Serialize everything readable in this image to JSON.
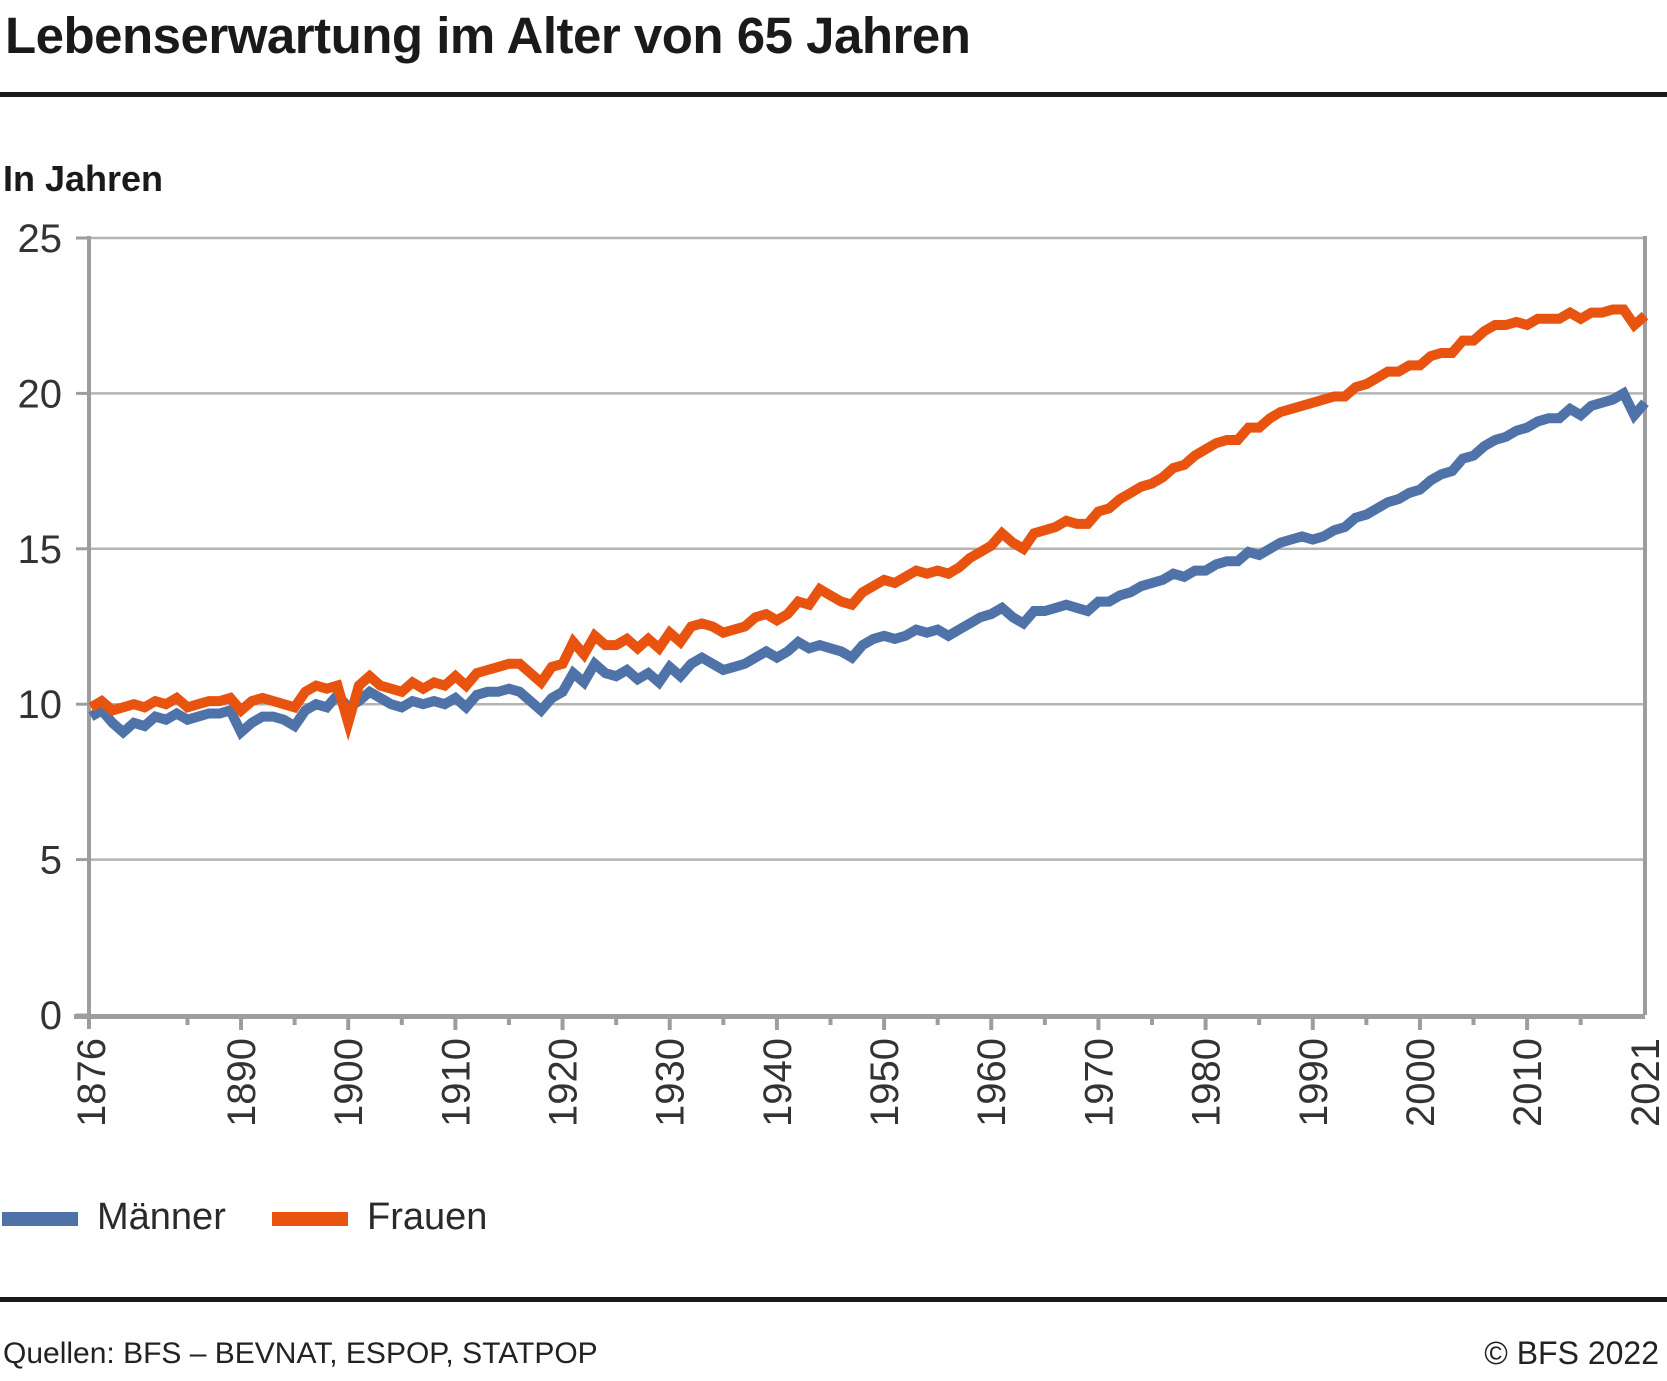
{
  "header": {
    "title": "Lebenserwartung im Alter von 65 Jahren"
  },
  "subtitle": "In Jahren",
  "legend": {
    "items": [
      {
        "label": "Männer",
        "color": "#4f72a9"
      },
      {
        "label": "Frauen",
        "color": "#e8530f"
      }
    ]
  },
  "footer": {
    "sources": "Quellen: BFS – BEVNAT, ESPOP, STATPOP",
    "copyright": "© BFS 2022"
  },
  "colors": {
    "maenner": "#4f72a9",
    "frauen": "#e8530f",
    "grid": "#b4b4b4",
    "axis": "#9d9d9d",
    "text": "#333333",
    "rule": "#1a1a1a"
  },
  "chart_data": {
    "type": "line",
    "title": "Lebenserwartung im Alter von 65 Jahren",
    "ylabel": "In Jahren",
    "ylim": [
      0,
      25
    ],
    "yticks": [
      0,
      5,
      10,
      15,
      20,
      25
    ],
    "x_range": [
      1876,
      2021
    ],
    "xtick_labels": [
      1876,
      1890,
      1900,
      1910,
      1920,
      1930,
      1940,
      1950,
      1960,
      1970,
      1980,
      1990,
      2000,
      2010,
      2021
    ],
    "xticks_minor": [
      1885,
      1895,
      1905,
      1915,
      1925,
      1935,
      1945,
      1955,
      1965,
      1975,
      1985,
      1995,
      2005,
      2015
    ],
    "grid": "horizontal",
    "legend_position": "bottom",
    "years": [
      1876,
      1877,
      1878,
      1879,
      1880,
      1881,
      1882,
      1883,
      1884,
      1885,
      1886,
      1887,
      1888,
      1889,
      1890,
      1891,
      1892,
      1893,
      1894,
      1895,
      1896,
      1897,
      1898,
      1899,
      1900,
      1901,
      1902,
      1903,
      1904,
      1905,
      1906,
      1907,
      1908,
      1909,
      1910,
      1911,
      1912,
      1913,
      1914,
      1915,
      1916,
      1917,
      1918,
      1919,
      1920,
      1921,
      1922,
      1923,
      1924,
      1925,
      1926,
      1927,
      1928,
      1929,
      1930,
      1931,
      1932,
      1933,
      1934,
      1935,
      1936,
      1937,
      1938,
      1939,
      1940,
      1941,
      1942,
      1943,
      1944,
      1945,
      1946,
      1947,
      1948,
      1949,
      1950,
      1951,
      1952,
      1953,
      1954,
      1955,
      1956,
      1957,
      1958,
      1959,
      1960,
      1961,
      1962,
      1963,
      1964,
      1965,
      1966,
      1967,
      1968,
      1969,
      1970,
      1971,
      1972,
      1973,
      1974,
      1975,
      1976,
      1977,
      1978,
      1979,
      1980,
      1981,
      1982,
      1983,
      1984,
      1985,
      1986,
      1987,
      1988,
      1989,
      1990,
      1991,
      1992,
      1993,
      1994,
      1995,
      1996,
      1997,
      1998,
      1999,
      2000,
      2001,
      2002,
      2003,
      2004,
      2005,
      2006,
      2007,
      2008,
      2009,
      2010,
      2011,
      2012,
      2013,
      2014,
      2015,
      2016,
      2017,
      2018,
      2019,
      2020,
      2021
    ],
    "series": [
      {
        "name": "Männer",
        "color": "#4f72a9",
        "values": [
          9.6,
          9.8,
          9.4,
          9.1,
          9.4,
          9.3,
          9.6,
          9.5,
          9.7,
          9.5,
          9.6,
          9.7,
          9.7,
          9.8,
          9.1,
          9.4,
          9.6,
          9.6,
          9.5,
          9.3,
          9.8,
          10.0,
          9.9,
          10.3,
          9.9,
          10.1,
          10.4,
          10.2,
          10.0,
          9.9,
          10.1,
          10.0,
          10.1,
          10.0,
          10.2,
          9.9,
          10.3,
          10.4,
          10.4,
          10.5,
          10.4,
          10.1,
          9.8,
          10.2,
          10.4,
          11.0,
          10.7,
          11.3,
          11.0,
          10.9,
          11.1,
          10.8,
          11.0,
          10.7,
          11.2,
          10.9,
          11.3,
          11.5,
          11.3,
          11.1,
          11.2,
          11.3,
          11.5,
          11.7,
          11.5,
          11.7,
          12.0,
          11.8,
          11.9,
          11.8,
          11.7,
          11.5,
          11.9,
          12.1,
          12.2,
          12.1,
          12.2,
          12.4,
          12.3,
          12.4,
          12.2,
          12.4,
          12.6,
          12.8,
          12.9,
          13.1,
          12.8,
          12.6,
          13.0,
          13.0,
          13.1,
          13.2,
          13.1,
          13.0,
          13.3,
          13.3,
          13.5,
          13.6,
          13.8,
          13.9,
          14.0,
          14.2,
          14.1,
          14.3,
          14.3,
          14.5,
          14.6,
          14.6,
          14.9,
          14.8,
          15.0,
          15.2,
          15.3,
          15.4,
          15.3,
          15.4,
          15.6,
          15.7,
          16.0,
          16.1,
          16.3,
          16.5,
          16.6,
          16.8,
          16.9,
          17.2,
          17.4,
          17.5,
          17.9,
          18.0,
          18.3,
          18.5,
          18.6,
          18.8,
          18.9,
          19.1,
          19.2,
          19.2,
          19.5,
          19.3,
          19.6,
          19.7,
          19.8,
          20.0,
          19.3,
          19.7
        ]
      },
      {
        "name": "Frauen",
        "color": "#e8530f",
        "values": [
          9.9,
          10.1,
          9.8,
          9.9,
          10.0,
          9.9,
          10.1,
          10.0,
          10.2,
          9.9,
          10.0,
          10.1,
          10.1,
          10.2,
          9.8,
          10.1,
          10.2,
          10.1,
          10.0,
          9.9,
          10.4,
          10.6,
          10.5,
          10.6,
          9.4,
          10.6,
          10.9,
          10.6,
          10.5,
          10.4,
          10.7,
          10.5,
          10.7,
          10.6,
          10.9,
          10.6,
          11.0,
          11.1,
          11.2,
          11.3,
          11.3,
          11.0,
          10.7,
          11.2,
          11.3,
          12.0,
          11.6,
          12.2,
          11.9,
          11.9,
          12.1,
          11.8,
          12.1,
          11.8,
          12.3,
          12.0,
          12.5,
          12.6,
          12.5,
          12.3,
          12.4,
          12.5,
          12.8,
          12.9,
          12.7,
          12.9,
          13.3,
          13.2,
          13.7,
          13.5,
          13.3,
          13.2,
          13.6,
          13.8,
          14.0,
          13.9,
          14.1,
          14.3,
          14.2,
          14.3,
          14.2,
          14.4,
          14.7,
          14.9,
          15.1,
          15.5,
          15.2,
          15.0,
          15.5,
          15.6,
          15.7,
          15.9,
          15.8,
          15.8,
          16.2,
          16.3,
          16.6,
          16.8,
          17.0,
          17.1,
          17.3,
          17.6,
          17.7,
          18.0,
          18.2,
          18.4,
          18.5,
          18.5,
          18.9,
          18.9,
          19.2,
          19.4,
          19.5,
          19.6,
          19.7,
          19.8,
          19.9,
          19.9,
          20.2,
          20.3,
          20.5,
          20.7,
          20.7,
          20.9,
          20.9,
          21.2,
          21.3,
          21.3,
          21.7,
          21.7,
          22.0,
          22.2,
          22.2,
          22.3,
          22.2,
          22.4,
          22.4,
          22.4,
          22.6,
          22.4,
          22.6,
          22.6,
          22.7,
          22.7,
          22.2,
          22.5
        ]
      }
    ]
  }
}
